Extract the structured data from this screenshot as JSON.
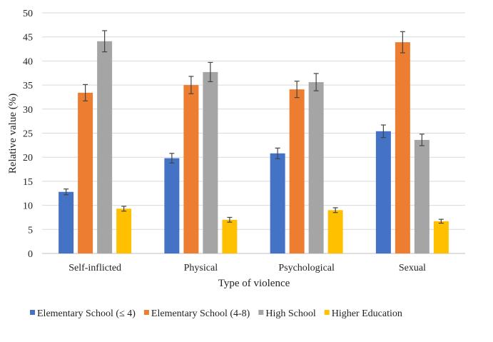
{
  "chart_data": {
    "type": "bar",
    "title": "",
    "xlabel": "Type of violence",
    "ylabel": "Relative value (%)",
    "ylim": [
      0,
      50
    ],
    "yticks": [
      0,
      5,
      10,
      15,
      20,
      25,
      30,
      35,
      40,
      45,
      50
    ],
    "grid": true,
    "legend_position": "bottom",
    "categories": [
      "Self-inflicted",
      "Physical",
      "Psychological",
      "Sexual"
    ],
    "series": [
      {
        "name": "Elementary School (≤ 4)",
        "color": "#4472C4",
        "values": [
          12.8,
          19.8,
          20.8,
          25.4
        ],
        "errors": [
          0.6,
          1.0,
          1.1,
          1.3
        ]
      },
      {
        "name": "Elementary School (4-8)",
        "color": "#ED7D31",
        "values": [
          33.4,
          35.0,
          34.1,
          43.9
        ],
        "errors": [
          1.7,
          1.8,
          1.7,
          2.2
        ]
      },
      {
        "name": "High School",
        "color": "#A5A5A5",
        "values": [
          44.1,
          37.7,
          35.6,
          23.6
        ],
        "errors": [
          2.2,
          2.0,
          1.8,
          1.2
        ]
      },
      {
        "name": "Higher Education",
        "color": "#FFC000",
        "values": [
          9.3,
          7.0,
          9.0,
          6.7
        ],
        "errors": [
          0.5,
          0.5,
          0.5,
          0.4
        ]
      }
    ]
  }
}
